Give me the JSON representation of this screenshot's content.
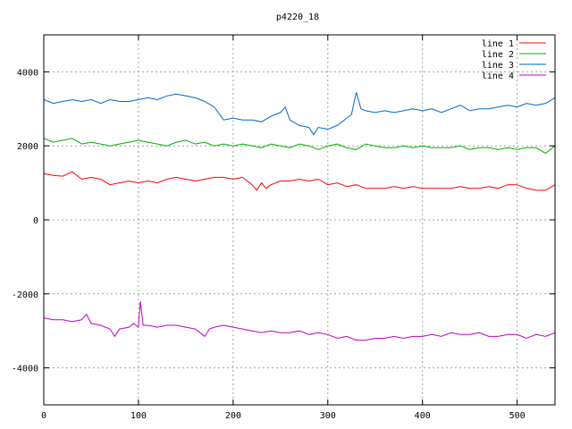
{
  "chart_data": {
    "type": "line",
    "title": "p4220_18",
    "xlabel": "",
    "ylabel": "",
    "xlim": [
      0,
      540
    ],
    "ylim": [
      -5000,
      5000
    ],
    "xticks": [
      0,
      100,
      200,
      300,
      400,
      500
    ],
    "yticks": [
      -4000,
      -2000,
      0,
      2000,
      4000
    ],
    "grid": true,
    "legend_position": "top-right",
    "series": [
      {
        "name": "line 1",
        "color": "#ff0000",
        "x": [
          0,
          10,
          20,
          30,
          40,
          50,
          60,
          70,
          80,
          90,
          100,
          110,
          120,
          130,
          140,
          150,
          160,
          170,
          180,
          190,
          200,
          210,
          220,
          225,
          230,
          235,
          240,
          250,
          260,
          270,
          280,
          290,
          300,
          310,
          320,
          330,
          340,
          350,
          360,
          370,
          380,
          390,
          400,
          410,
          420,
          430,
          440,
          450,
          460,
          470,
          480,
          490,
          500,
          510,
          520,
          530,
          540
        ],
        "values": [
          1250,
          1200,
          1180,
          1300,
          1100,
          1150,
          1100,
          950,
          1000,
          1050,
          1000,
          1050,
          1000,
          1100,
          1150,
          1100,
          1050,
          1100,
          1150,
          1150,
          1100,
          1150,
          950,
          800,
          1000,
          850,
          950,
          1050,
          1050,
          1100,
          1050,
          1100,
          950,
          1000,
          900,
          950,
          850,
          850,
          850,
          900,
          850,
          900,
          850,
          850,
          850,
          850,
          900,
          850,
          850,
          900,
          850,
          950,
          950,
          850,
          800,
          800,
          950
        ]
      },
      {
        "name": "line 2",
        "color": "#00b000",
        "x": [
          0,
          10,
          20,
          30,
          40,
          50,
          60,
          70,
          80,
          90,
          100,
          110,
          120,
          130,
          140,
          150,
          160,
          170,
          180,
          190,
          200,
          210,
          220,
          230,
          240,
          250,
          260,
          270,
          280,
          290,
          300,
          310,
          320,
          330,
          340,
          350,
          360,
          370,
          380,
          390,
          400,
          410,
          420,
          430,
          440,
          450,
          460,
          470,
          480,
          490,
          500,
          510,
          520,
          530,
          540
        ],
        "values": [
          2200,
          2100,
          2150,
          2200,
          2050,
          2100,
          2050,
          2000,
          2050,
          2100,
          2150,
          2100,
          2050,
          2000,
          2100,
          2150,
          2050,
          2100,
          2000,
          2050,
          2000,
          2050,
          2000,
          1950,
          2050,
          2000,
          1950,
          2050,
          2000,
          1900,
          2000,
          2050,
          1950,
          1900,
          2050,
          2000,
          1950,
          1950,
          2000,
          1950,
          2000,
          1950,
          1950,
          1950,
          2000,
          1900,
          1950,
          1950,
          1900,
          1950,
          1900,
          1950,
          1950,
          1800,
          2000
        ]
      },
      {
        "name": "line 3",
        "color": "#0066cc",
        "x": [
          0,
          10,
          20,
          30,
          40,
          50,
          60,
          70,
          80,
          90,
          100,
          110,
          120,
          130,
          140,
          150,
          160,
          170,
          180,
          190,
          200,
          210,
          220,
          230,
          240,
          250,
          255,
          260,
          270,
          280,
          285,
          290,
          300,
          310,
          320,
          325,
          330,
          335,
          340,
          350,
          360,
          370,
          380,
          390,
          400,
          410,
          420,
          430,
          440,
          450,
          460,
          470,
          480,
          490,
          500,
          510,
          520,
          530,
          540
        ],
        "values": [
          3250,
          3150,
          3200,
          3250,
          3200,
          3250,
          3150,
          3250,
          3200,
          3200,
          3250,
          3300,
          3250,
          3350,
          3400,
          3350,
          3300,
          3200,
          3050,
          2700,
          2750,
          2700,
          2700,
          2650,
          2800,
          2900,
          3050,
          2700,
          2550,
          2500,
          2300,
          2500,
          2450,
          2550,
          2750,
          2850,
          3450,
          3000,
          2950,
          2900,
          2950,
          2900,
          2950,
          3000,
          2950,
          3000,
          2900,
          3000,
          3100,
          2950,
          3000,
          3000,
          3050,
          3100,
          3050,
          3150,
          3100,
          3150,
          3300
        ]
      },
      {
        "name": "line 4",
        "color": "#c000c0",
        "x": [
          0,
          10,
          20,
          30,
          40,
          45,
          50,
          60,
          70,
          75,
          80,
          90,
          95,
          100,
          102,
          105,
          110,
          120,
          130,
          140,
          150,
          160,
          165,
          170,
          175,
          180,
          190,
          200,
          210,
          220,
          230,
          240,
          250,
          260,
          270,
          280,
          290,
          300,
          310,
          320,
          330,
          340,
          350,
          360,
          370,
          380,
          390,
          400,
          410,
          420,
          430,
          440,
          450,
          460,
          470,
          480,
          490,
          500,
          510,
          520,
          530,
          540
        ],
        "values": [
          -2650,
          -2700,
          -2700,
          -2750,
          -2700,
          -2550,
          -2800,
          -2850,
          -2950,
          -3150,
          -2950,
          -2900,
          -2800,
          -2900,
          -2200,
          -2850,
          -2850,
          -2900,
          -2850,
          -2850,
          -2900,
          -2950,
          -3050,
          -3150,
          -2950,
          -2900,
          -2850,
          -2900,
          -2950,
          -3000,
          -3050,
          -3000,
          -3050,
          -3050,
          -3000,
          -3100,
          -3050,
          -3100,
          -3200,
          -3150,
          -3250,
          -3250,
          -3200,
          -3200,
          -3150,
          -3200,
          -3150,
          -3150,
          -3100,
          -3150,
          -3050,
          -3100,
          -3100,
          -3050,
          -3150,
          -3150,
          -3100,
          -3100,
          -3200,
          -3100,
          -3150,
          -3050
        ]
      }
    ]
  }
}
